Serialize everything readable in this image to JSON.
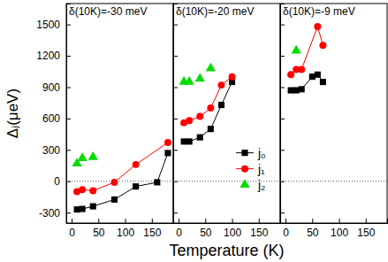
{
  "chart_data": [
    {
      "type": "scatter",
      "title": "δ(10K)=-30 meV",
      "y_label": "Δⱼ(μeV)",
      "xlim": [
        -10,
        190
      ],
      "xticks": [
        0,
        50,
        100,
        150
      ],
      "ylim": [
        -400,
        1700
      ],
      "yticks": [
        -300,
        0,
        300,
        600,
        900,
        1200,
        1500
      ],
      "series": [
        {
          "color": "#000000",
          "marker": "square",
          "line_style": "solid",
          "x": [
            10,
            20,
            40,
            80,
            120,
            160,
            180
          ],
          "values": [
            -270,
            -265,
            -240,
            -175,
            -50,
            -10,
            270
          ]
        },
        {
          "color": "#ff0000",
          "marker": "circle",
          "line_style": "solid",
          "x": [
            10,
            20,
            40,
            80,
            120,
            180
          ],
          "values": [
            -100,
            -80,
            -90,
            -10,
            160,
            370
          ]
        },
        {
          "color": "#00dd00",
          "marker": "triangle",
          "line_style": "none",
          "x": [
            10,
            20,
            40
          ],
          "values": [
            170,
            220,
            230
          ]
        }
      ]
    },
    {
      "type": "scatter",
      "title": "δ(10K)=-20 meV",
      "x_label": "Temperature (K)",
      "xlim": [
        -10,
        190
      ],
      "xticks": [
        0,
        50,
        100,
        150
      ],
      "ylim": [
        -400,
        1700
      ],
      "yticks": [
        -300,
        0,
        300,
        600,
        900,
        1200,
        1500
      ],
      "tick_labels": "x",
      "legend": "right",
      "series": [
        {
          "name": "j₀",
          "color": "#000000",
          "marker": "square",
          "line_style": "solid",
          "x": [
            10,
            20,
            40,
            60,
            80,
            100
          ],
          "values": [
            380,
            380,
            420,
            500,
            730,
            950
          ]
        },
        {
          "name": "j₁",
          "color": "#ff0000",
          "marker": "circle",
          "line_style": "solid",
          "x": [
            10,
            20,
            40,
            60,
            80,
            100
          ],
          "values": [
            560,
            580,
            620,
            700,
            920,
            1000
          ]
        },
        {
          "name": "j₂",
          "color": "#00dd00",
          "marker": "triangle",
          "line_style": "none",
          "x": [
            10,
            20,
            40,
            60
          ],
          "values": [
            950,
            950,
            980,
            1080
          ]
        }
      ]
    },
    {
      "type": "scatter",
      "title": "δ(10K)=-9 meV",
      "xlim": [
        -10,
        190
      ],
      "xticks": [
        0,
        50,
        100,
        150
      ],
      "ylim": [
        -400,
        1700
      ],
      "yticks": [
        -300,
        0,
        300,
        600,
        900,
        1200,
        1500
      ],
      "tick_labels": "x",
      "series": [
        {
          "color": "#000000",
          "marker": "square",
          "line_style": "solid",
          "x": [
            10,
            20,
            30,
            50,
            60,
            70
          ],
          "values": [
            870,
            870,
            880,
            1000,
            1020,
            950
          ]
        },
        {
          "color": "#ff0000",
          "marker": "circle",
          "line_style": "solid",
          "x": [
            10,
            20,
            30,
            60,
            70
          ],
          "values": [
            1020,
            1070,
            1070,
            1480,
            1300
          ]
        },
        {
          "color": "#00dd00",
          "marker": "triangle",
          "line_style": "none",
          "x": [
            20
          ],
          "values": [
            1250
          ]
        }
      ]
    }
  ]
}
